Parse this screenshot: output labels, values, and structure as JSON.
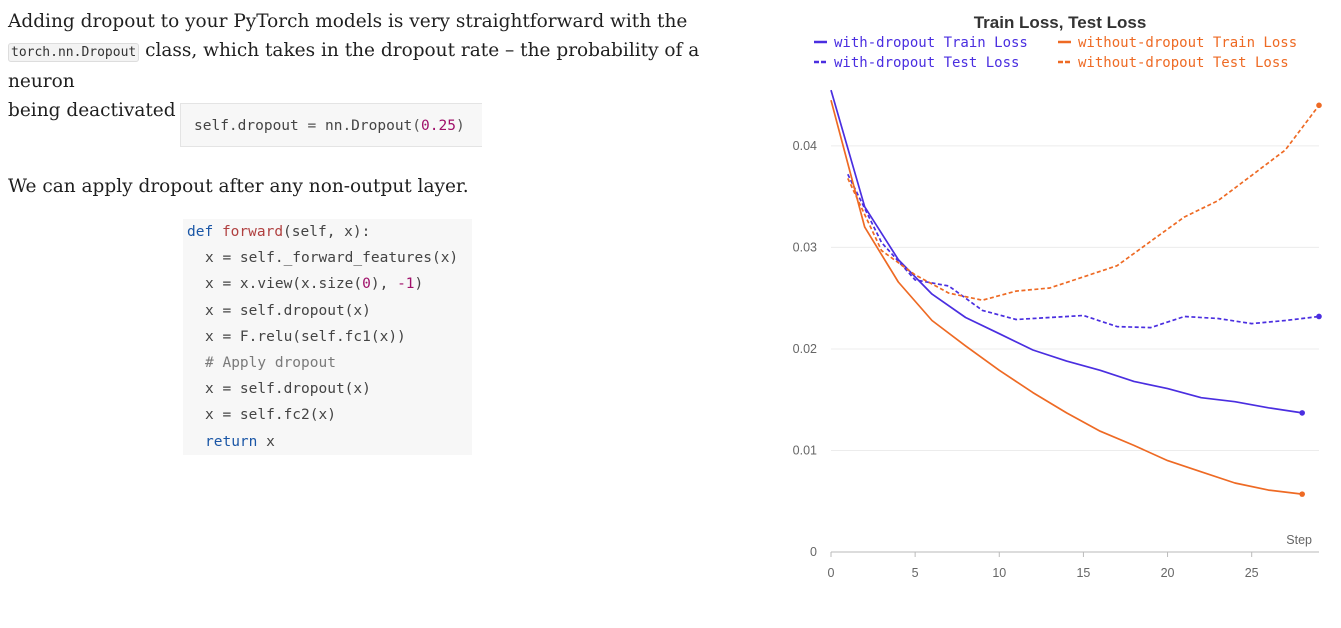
{
  "text": {
    "para1_a": "Adding dropout to your PyTorch models is very straightforward with the",
    "para1_code": "torch.nn.Dropout",
    "para1_b": " class, which takes in the dropout rate – the probability of a neuron",
    "para1_c": "being deactivated – as a parameter.",
    "para2": "We can apply dropout after any non-output layer."
  },
  "code1": {
    "tokens": [
      "self",
      ".",
      "dropout",
      " = ",
      "nn",
      ".",
      "Dropout",
      "(",
      "0.25",
      ")"
    ]
  },
  "code2": {
    "l1_kw": "def",
    "l1_fn": "forward",
    "l1_rest": "(self, x):",
    "l2": "x = self._forward_features(x)",
    "l3_a": "x = x.view(x.size(",
    "l3_n1": "0",
    "l3_b": "), ",
    "l3_n2": "-1",
    "l3_c": ")",
    "l4": "x = self.dropout(x)",
    "l5": "x = F.relu(self.fc1(x))",
    "l6": "# Apply dropout",
    "l7": "x = self.dropout(x)",
    "l8": "x = self.fc2(x)",
    "l9_kw": "return",
    "l9_rest": " x"
  },
  "colors": {
    "with_dropout": "#4a2ee0",
    "without_dropout": "#ee6a24"
  },
  "chart_data": {
    "type": "line",
    "title": "Train Loss, Test Loss",
    "xlabel": "Step",
    "ylabel": "",
    "xlim": [
      0,
      29
    ],
    "ylim": [
      0,
      0.046
    ],
    "xticks": [
      "0",
      "5",
      "10",
      "15",
      "20",
      "25"
    ],
    "xtick_values": [
      0,
      5,
      10,
      15,
      20,
      25
    ],
    "yticks": [
      "0",
      "0.01",
      "0.02",
      "0.03",
      "0.04"
    ],
    "ytick_values": [
      0,
      0.01,
      0.02,
      0.03,
      0.04
    ],
    "legend_position": "top",
    "series": [
      {
        "name": "with-dropout Train Loss",
        "style": "solid",
        "color": "#4a2ee0",
        "x": [
          0,
          2,
          4,
          6,
          8,
          10,
          12,
          14,
          16,
          18,
          20,
          22,
          24,
          26,
          28
        ],
        "y": [
          0.0455,
          0.034,
          0.0288,
          0.0254,
          0.0231,
          0.0215,
          0.0199,
          0.0188,
          0.0179,
          0.0168,
          0.0161,
          0.0152,
          0.0148,
          0.0142,
          0.0137
        ]
      },
      {
        "name": "with-dropout Test Loss",
        "style": "dashed",
        "color": "#4a2ee0",
        "x": [
          1,
          3,
          5,
          7,
          9,
          11,
          13,
          15,
          17,
          19,
          21,
          23,
          25,
          27,
          29
        ],
        "y": [
          0.0372,
          0.0305,
          0.0268,
          0.0262,
          0.0238,
          0.0229,
          0.0231,
          0.0233,
          0.0222,
          0.0221,
          0.0232,
          0.023,
          0.0225,
          0.0228,
          0.0232
        ]
      },
      {
        "name": "without-dropout Train Loss",
        "style": "solid",
        "color": "#ee6a24",
        "x": [
          0,
          2,
          4,
          6,
          8,
          10,
          12,
          14,
          16,
          18,
          20,
          22,
          24,
          26,
          28
        ],
        "y": [
          0.0445,
          0.032,
          0.0266,
          0.0228,
          0.0203,
          0.0179,
          0.0157,
          0.0137,
          0.0119,
          0.0105,
          0.009,
          0.0079,
          0.0068,
          0.0061,
          0.0057
        ]
      },
      {
        "name": "without-dropout Test Loss",
        "style": "dashed",
        "color": "#ee6a24",
        "x": [
          1,
          3,
          5,
          7,
          9,
          11,
          13,
          15,
          17,
          19,
          21,
          23,
          25,
          27,
          29
        ],
        "y": [
          0.0368,
          0.0297,
          0.0273,
          0.0255,
          0.0248,
          0.0257,
          0.026,
          0.0271,
          0.0282,
          0.0306,
          0.033,
          0.0346,
          0.0371,
          0.0396,
          0.044
        ]
      }
    ]
  }
}
